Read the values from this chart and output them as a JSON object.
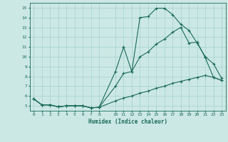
{
  "xlabel": "Humidex (Indice chaleur)",
  "bg_color": "#cce8e4",
  "grid_color": "#99cccc",
  "line_color": "#1a6b5a",
  "ylim": [
    4.5,
    15.5
  ],
  "xlim": [
    -0.5,
    23.5
  ],
  "yticks": [
    5,
    6,
    7,
    8,
    9,
    10,
    11,
    12,
    13,
    14,
    15
  ],
  "xticks": [
    0,
    1,
    2,
    3,
    4,
    5,
    6,
    7,
    8,
    10,
    11,
    12,
    13,
    14,
    15,
    16,
    17,
    18,
    19,
    20,
    21,
    22,
    23
  ],
  "series1_x": [
    0,
    1,
    2,
    3,
    4,
    5,
    6,
    7,
    8,
    10,
    11,
    12,
    13,
    14,
    15,
    16,
    17,
    18,
    19,
    20,
    21,
    22,
    23
  ],
  "series1_y": [
    5.7,
    5.1,
    5.1,
    4.9,
    5.0,
    5.0,
    5.0,
    4.8,
    4.85,
    8.5,
    11.0,
    8.5,
    14.0,
    14.1,
    14.95,
    14.95,
    14.3,
    13.3,
    12.7,
    11.4,
    10.0,
    9.3,
    7.8
  ],
  "series2_x": [
    0,
    1,
    2,
    3,
    4,
    5,
    6,
    7,
    8,
    10,
    11,
    12,
    13,
    14,
    15,
    16,
    17,
    18,
    19,
    20,
    21,
    22,
    23
  ],
  "series2_y": [
    5.7,
    5.1,
    5.1,
    4.9,
    5.0,
    5.0,
    5.0,
    4.8,
    4.85,
    7.0,
    8.3,
    8.5,
    10.0,
    10.5,
    11.3,
    11.8,
    12.5,
    13.0,
    11.4,
    11.5,
    9.9,
    7.9,
    7.6
  ],
  "series3_x": [
    0,
    1,
    2,
    3,
    4,
    5,
    6,
    7,
    8,
    10,
    11,
    12,
    13,
    14,
    15,
    16,
    17,
    18,
    19,
    20,
    21,
    22,
    23
  ],
  "series3_y": [
    5.7,
    5.1,
    5.1,
    4.9,
    5.0,
    5.0,
    5.0,
    4.8,
    4.85,
    5.5,
    5.8,
    6.0,
    6.3,
    6.5,
    6.8,
    7.0,
    7.3,
    7.5,
    7.7,
    7.9,
    8.1,
    7.9,
    7.6
  ]
}
